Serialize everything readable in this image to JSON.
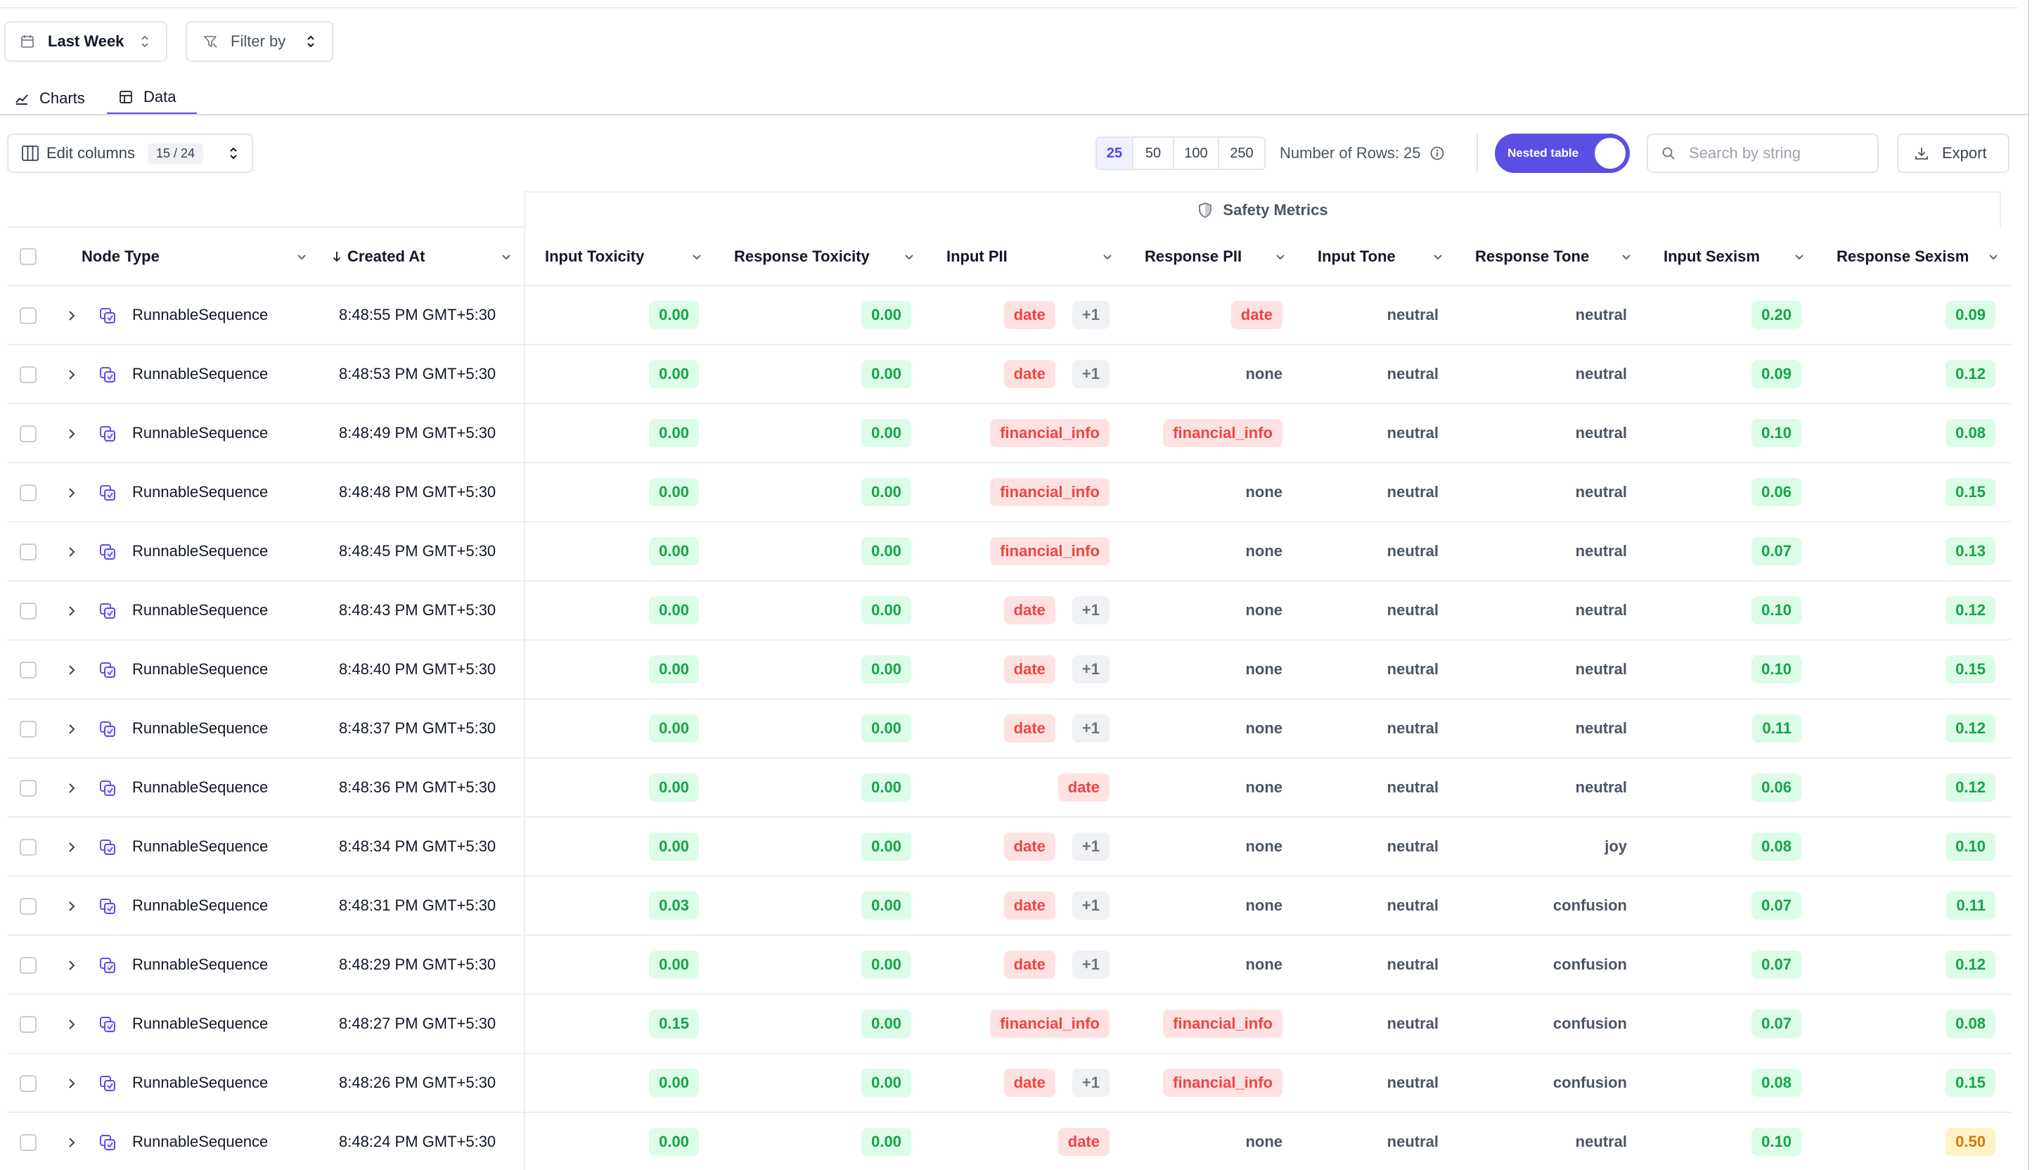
{
  "toolbar": {
    "range_label": "Last Week",
    "filter_label": "Filter by"
  },
  "tabs": [
    {
      "label": "Charts",
      "icon": "line-chart-icon",
      "active": false
    },
    {
      "label": "Data",
      "icon": "table-icon",
      "active": true
    }
  ],
  "controls": {
    "edit_columns_label": "Edit columns",
    "columns_count": "15 / 24",
    "page_sizes": [
      "25",
      "50",
      "100",
      "250"
    ],
    "active_page_size": "25",
    "row_count_label": "Number of Rows: 25",
    "nested_toggle_label": "Nested table",
    "nested_toggle_on": true,
    "search_placeholder": "Search by string",
    "export_label": "Export"
  },
  "colors": {
    "accent": "#5b4ee5",
    "good": "#16a34a",
    "warn": "#d97706",
    "pii": "#ef4444"
  },
  "table": {
    "group_header": "Safety Metrics",
    "columns": {
      "node_type": "Node Type",
      "created_at": "Created At",
      "input_toxicity": "Input Toxicity",
      "response_toxicity": "Response Toxicity",
      "input_pii": "Input PII",
      "response_pii": "Response PII",
      "input_tone": "Input Tone",
      "response_tone": "Response Tone",
      "input_sexism": "Input Sexism",
      "response_sexism": "Response Sexism"
    },
    "rows": [
      {
        "node": "RunnableSequence",
        "created": "8:48:55 PM GMT+5:30",
        "in_tox": "0.00",
        "resp_tox": "0.00",
        "in_pii": "date",
        "in_pii_more": "+1",
        "resp_pii": "date",
        "in_tone": "neutral",
        "resp_tone": "neutral",
        "in_sex": "0.20",
        "resp_sex": "0.09"
      },
      {
        "node": "RunnableSequence",
        "created": "8:48:53 PM GMT+5:30",
        "in_tox": "0.00",
        "resp_tox": "0.00",
        "in_pii": "date",
        "in_pii_more": "+1",
        "resp_pii": "none",
        "in_tone": "neutral",
        "resp_tone": "neutral",
        "in_sex": "0.09",
        "resp_sex": "0.12"
      },
      {
        "node": "RunnableSequence",
        "created": "8:48:49 PM GMT+5:30",
        "in_tox": "0.00",
        "resp_tox": "0.00",
        "in_pii": "financial_info",
        "in_pii_more": "",
        "resp_pii": "financial_info",
        "in_tone": "neutral",
        "resp_tone": "neutral",
        "in_sex": "0.10",
        "resp_sex": "0.08"
      },
      {
        "node": "RunnableSequence",
        "created": "8:48:48 PM GMT+5:30",
        "in_tox": "0.00",
        "resp_tox": "0.00",
        "in_pii": "financial_info",
        "in_pii_more": "",
        "resp_pii": "none",
        "in_tone": "neutral",
        "resp_tone": "neutral",
        "in_sex": "0.06",
        "resp_sex": "0.15"
      },
      {
        "node": "RunnableSequence",
        "created": "8:48:45 PM GMT+5:30",
        "in_tox": "0.00",
        "resp_tox": "0.00",
        "in_pii": "financial_info",
        "in_pii_more": "",
        "resp_pii": "none",
        "in_tone": "neutral",
        "resp_tone": "neutral",
        "in_sex": "0.07",
        "resp_sex": "0.13"
      },
      {
        "node": "RunnableSequence",
        "created": "8:48:43 PM GMT+5:30",
        "in_tox": "0.00",
        "resp_tox": "0.00",
        "in_pii": "date",
        "in_pii_more": "+1",
        "resp_pii": "none",
        "in_tone": "neutral",
        "resp_tone": "neutral",
        "in_sex": "0.10",
        "resp_sex": "0.12"
      },
      {
        "node": "RunnableSequence",
        "created": "8:48:40 PM GMT+5:30",
        "in_tox": "0.00",
        "resp_tox": "0.00",
        "in_pii": "date",
        "in_pii_more": "+1",
        "resp_pii": "none",
        "in_tone": "neutral",
        "resp_tone": "neutral",
        "in_sex": "0.10",
        "resp_sex": "0.15"
      },
      {
        "node": "RunnableSequence",
        "created": "8:48:37 PM GMT+5:30",
        "in_tox": "0.00",
        "resp_tox": "0.00",
        "in_pii": "date",
        "in_pii_more": "+1",
        "resp_pii": "none",
        "in_tone": "neutral",
        "resp_tone": "neutral",
        "in_sex": "0.11",
        "resp_sex": "0.12"
      },
      {
        "node": "RunnableSequence",
        "created": "8:48:36 PM GMT+5:30",
        "in_tox": "0.00",
        "resp_tox": "0.00",
        "in_pii": "date",
        "in_pii_more": "",
        "resp_pii": "none",
        "in_tone": "neutral",
        "resp_tone": "neutral",
        "in_sex": "0.06",
        "resp_sex": "0.12"
      },
      {
        "node": "RunnableSequence",
        "created": "8:48:34 PM GMT+5:30",
        "in_tox": "0.00",
        "resp_tox": "0.00",
        "in_pii": "date",
        "in_pii_more": "+1",
        "resp_pii": "none",
        "in_tone": "neutral",
        "resp_tone": "joy",
        "in_sex": "0.08",
        "resp_sex": "0.10"
      },
      {
        "node": "RunnableSequence",
        "created": "8:48:31 PM GMT+5:30",
        "in_tox": "0.03",
        "resp_tox": "0.00",
        "in_pii": "date",
        "in_pii_more": "+1",
        "resp_pii": "none",
        "in_tone": "neutral",
        "resp_tone": "confusion",
        "in_sex": "0.07",
        "resp_sex": "0.11"
      },
      {
        "node": "RunnableSequence",
        "created": "8:48:29 PM GMT+5:30",
        "in_tox": "0.00",
        "resp_tox": "0.00",
        "in_pii": "date",
        "in_pii_more": "+1",
        "resp_pii": "none",
        "in_tone": "neutral",
        "resp_tone": "confusion",
        "in_sex": "0.07",
        "resp_sex": "0.12"
      },
      {
        "node": "RunnableSequence",
        "created": "8:48:27 PM GMT+5:30",
        "in_tox": "0.15",
        "resp_tox": "0.00",
        "in_pii": "financial_info",
        "in_pii_more": "",
        "resp_pii": "financial_info",
        "in_tone": "neutral",
        "resp_tone": "confusion",
        "in_sex": "0.07",
        "resp_sex": "0.08"
      },
      {
        "node": "RunnableSequence",
        "created": "8:48:26 PM GMT+5:30",
        "in_tox": "0.00",
        "resp_tox": "0.00",
        "in_pii": "date",
        "in_pii_more": "+1",
        "resp_pii": "financial_info",
        "in_tone": "neutral",
        "resp_tone": "confusion",
        "in_sex": "0.08",
        "resp_sex": "0.15"
      },
      {
        "node": "RunnableSequence",
        "created": "8:48:24 PM GMT+5:30",
        "in_tox": "0.00",
        "resp_tox": "0.00",
        "in_pii": "date",
        "in_pii_more": "",
        "resp_pii": "none",
        "in_tone": "neutral",
        "resp_tone": "neutral",
        "in_sex": "0.10",
        "resp_sex": "0.50",
        "resp_sex_status": "warn"
      }
    ]
  }
}
